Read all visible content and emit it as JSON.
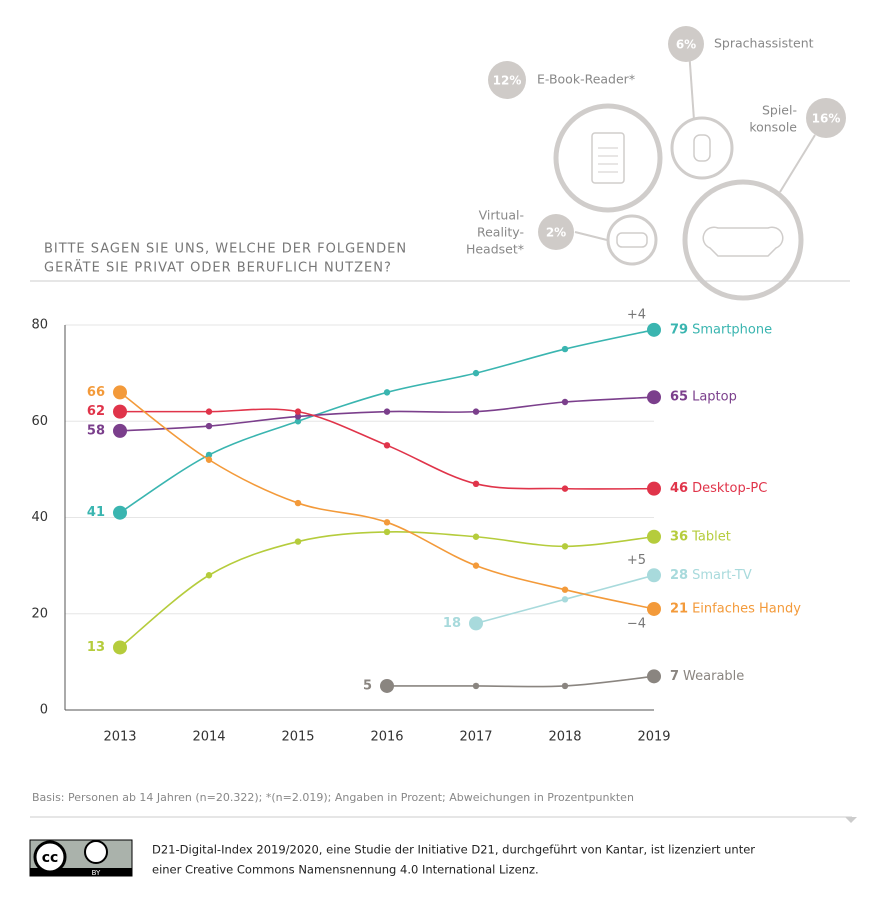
{
  "chart_data": {
    "type": "line",
    "title": [
      "BITTE SAGEN SIE UNS, WELCHE DER FOLGENDEN",
      "GERÄTE SIE PRIVAT ODER BERUFLICH NUTZEN?"
    ],
    "categories": [
      "2013",
      "2014",
      "2015",
      "2016",
      "2017",
      "2018",
      "2019"
    ],
    "ylim": [
      0,
      80
    ],
    "yticks": [
      0,
      20,
      40,
      60,
      80
    ],
    "grid": true,
    "series": [
      {
        "name": "Smartphone",
        "color": "#3ab5b0",
        "values": [
          41,
          53,
          60,
          66,
          70,
          75,
          79
        ],
        "change": "+4"
      },
      {
        "name": "Laptop",
        "color": "#7b3f8c",
        "values": [
          58,
          59,
          61,
          62,
          62,
          64,
          65
        ]
      },
      {
        "name": "Desktop-PC",
        "color": "#e0344a",
        "values": [
          62,
          62,
          62,
          55,
          47,
          46,
          46
        ]
      },
      {
        "name": "Tablet",
        "color": "#b5cc3c",
        "values": [
          13,
          28,
          35,
          37,
          36,
          34,
          36
        ]
      },
      {
        "name": "Smart-TV",
        "color": "#a8dadc",
        "values": [
          null,
          null,
          null,
          null,
          18,
          23,
          28
        ],
        "change": "+5"
      },
      {
        "name": "Einfaches Handy",
        "color": "#f39a3a",
        "values": [
          66,
          52,
          43,
          39,
          30,
          25,
          21
        ],
        "change": "−4"
      },
      {
        "name": "Wearable",
        "color": "#8a8580",
        "values": [
          null,
          null,
          null,
          5,
          5,
          5,
          7
        ]
      }
    ],
    "note": "Basis: Personen ab 14 Jahren (n=20.322); *(n=2.019); Angaben in Prozent; Abweichungen in Prozentpunkten"
  },
  "devices": [
    {
      "label": [
        "E-Book-Reader*"
      ],
      "share": "12%"
    },
    {
      "label": [
        "Sprachassistent"
      ],
      "share": "6%"
    },
    {
      "label": [
        "Spiel-",
        "konsole"
      ],
      "share": "16%"
    },
    {
      "label": [
        "Virtual-",
        "Reality-",
        "Headset*"
      ],
      "share": "2%"
    }
  ],
  "license_badge": [
    "cc",
    "BY"
  ],
  "license": [
    "D21-Digital-Index 2019/2020, eine Studie der Initiative D21, durchgeführt von Kantar, ist lizenziert unter",
    "einer Creative Commons Namensnennung 4.0 International Lizenz."
  ]
}
